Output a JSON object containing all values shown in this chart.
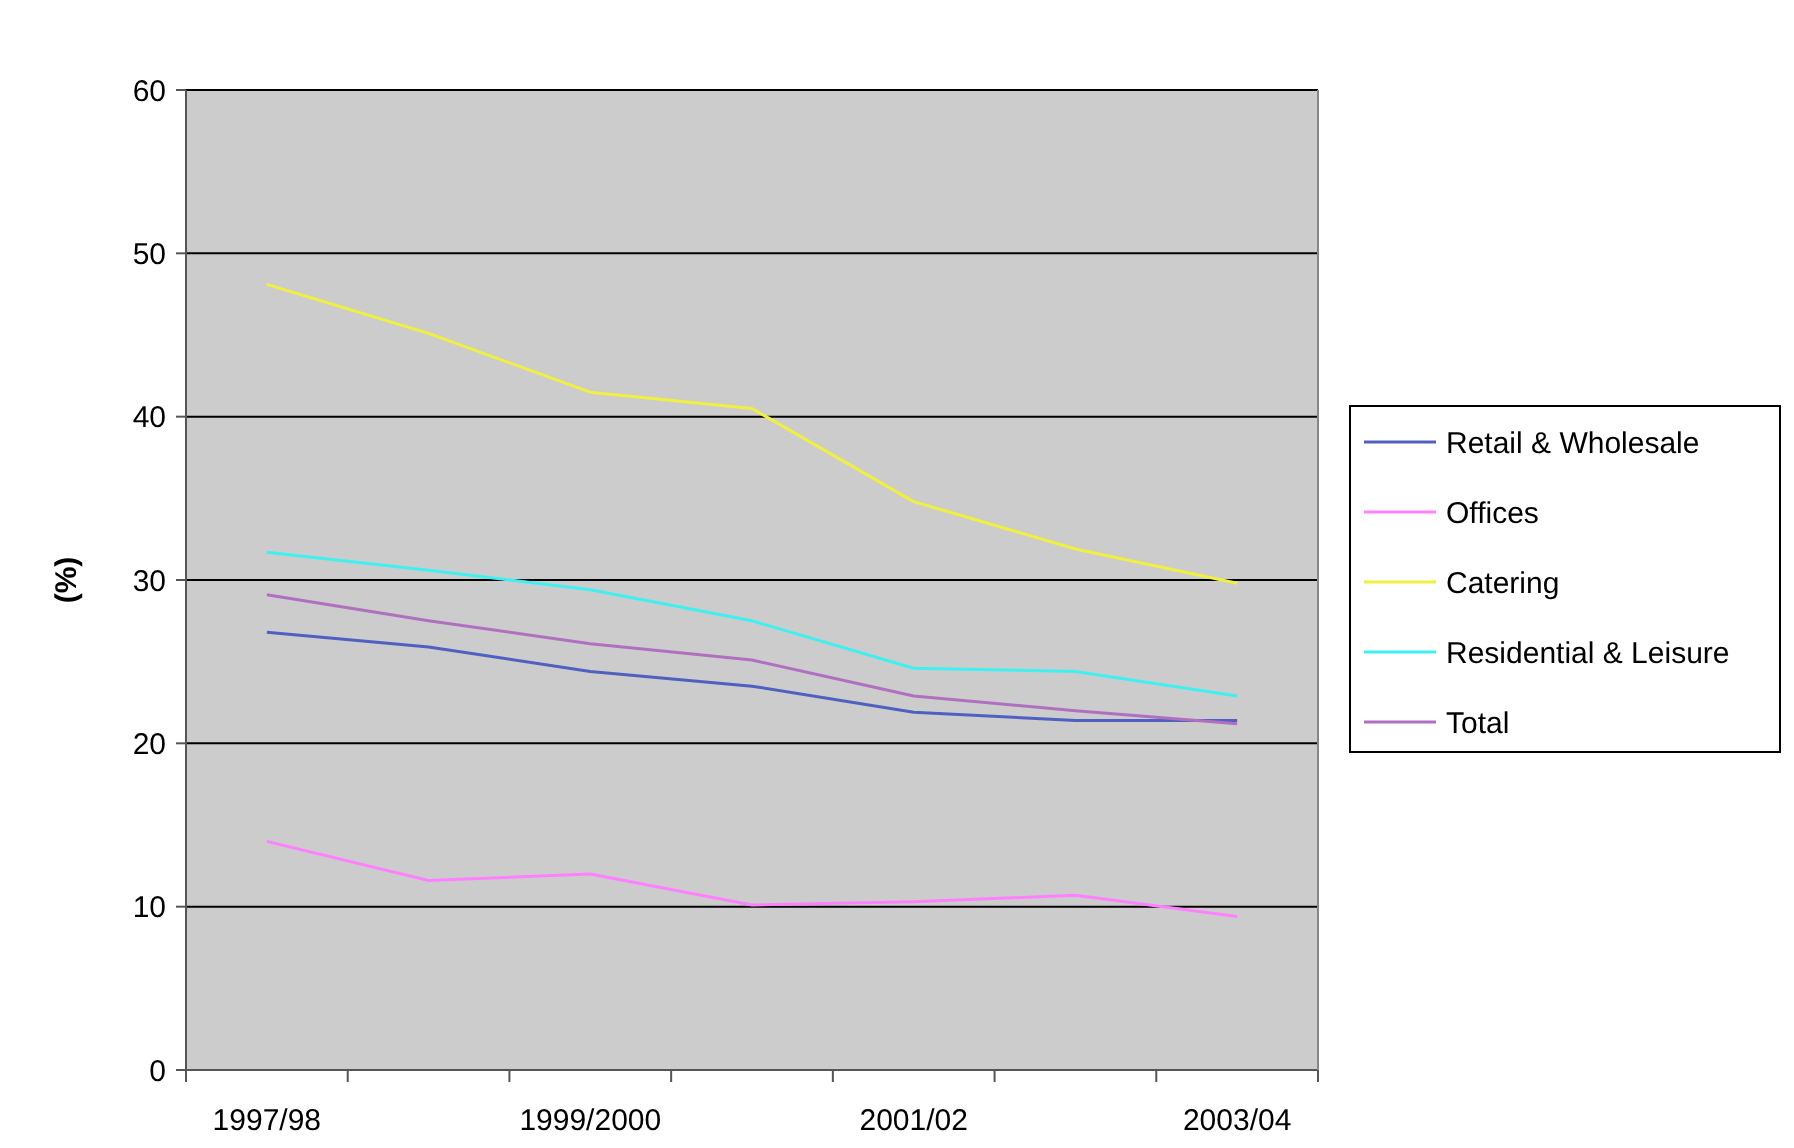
{
  "chart_data": {
    "type": "line",
    "ylabel": "(%)",
    "categories": [
      "1997/98",
      null,
      "1999/2000",
      null,
      "2001/02",
      null,
      "2003/04"
    ],
    "ylim": [
      0,
      60
    ],
    "yticks": [
      0,
      10,
      20,
      30,
      40,
      50,
      60
    ],
    "grid": "y",
    "legend": "right",
    "marker": "none",
    "line_style": "solid",
    "series": [
      {
        "name": "Retail & Wholesale",
        "color": "#5060c0",
        "values": [
          26.8,
          25.9,
          24.4,
          23.5,
          21.9,
          21.4,
          21.4
        ]
      },
      {
        "name": "Offices",
        "color": "#ff80ff",
        "values": [
          14.0,
          11.6,
          12.0,
          10.1,
          10.3,
          10.7,
          9.4
        ]
      },
      {
        "name": "Catering",
        "color": "#f0f040",
        "values": [
          48.1,
          45.1,
          41.5,
          40.5,
          34.8,
          31.9,
          29.8
        ]
      },
      {
        "name": "Residential & Leisure",
        "color": "#40f0f0",
        "values": [
          31.7,
          30.6,
          29.4,
          27.5,
          24.6,
          24.4,
          22.9
        ]
      },
      {
        "name": "Total",
        "color": "#b070c0",
        "values": [
          29.1,
          27.5,
          26.1,
          25.1,
          22.9,
          22.0,
          21.2
        ]
      }
    ]
  }
}
